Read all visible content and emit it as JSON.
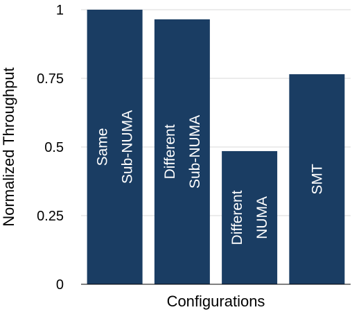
{
  "chart_data": {
    "type": "bar",
    "categories": [
      [
        "Same",
        "Sub-NUMA"
      ],
      [
        "Different",
        "Sub-NUMA"
      ],
      [
        "Different",
        "NUMA"
      ],
      [
        "SMT"
      ]
    ],
    "values": [
      1.0,
      0.965,
      0.485,
      0.765
    ],
    "xlabel": "Configurations",
    "ylabel": "Normalized Throughput",
    "ylim": [
      0,
      1
    ],
    "yticks": [
      0,
      0.25,
      0.5,
      0.75,
      1
    ],
    "ytick_labels": [
      "0",
      "0.25",
      "0.5",
      "0.75",
      "1"
    ],
    "grid": true,
    "bar_color": "#1a3d63",
    "label_color": "#ffffff"
  }
}
